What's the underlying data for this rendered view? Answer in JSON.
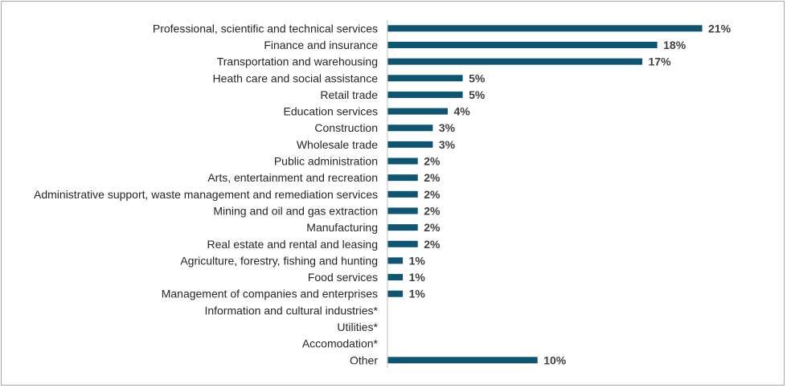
{
  "chart_data": {
    "type": "bar",
    "orientation": "horizontal",
    "title": "",
    "xlabel": "",
    "ylabel": "",
    "xlim": [
      0,
      21
    ],
    "grid": false,
    "legend": "none",
    "bar_color": "#0e5572",
    "categories": [
      "Professional, scientific and technical services",
      "Finance and insurance",
      "Transportation and warehousing",
      "Heath care and social assistance",
      "Retail trade",
      "Education services",
      "Construction",
      "Wholesale trade",
      "Public administration",
      "Arts, entertainment and recreation",
      "Administrative support, waste management and remediation services",
      "Mining and oil and gas extraction",
      "Manufacturing",
      "Real estate and rental and leasing",
      "Agriculture, forestry, fishing and hunting",
      "Food services",
      "Management of companies and enterprises",
      "Information and cultural industries*",
      "Utilities*",
      "Accomodation*",
      "Other"
    ],
    "values": [
      21,
      18,
      17,
      5,
      5,
      4,
      3,
      3,
      2,
      2,
      2,
      2,
      2,
      2,
      1,
      1,
      1,
      null,
      null,
      null,
      10
    ],
    "labels": [
      "21%",
      "18%",
      "17%",
      "5%",
      "5%",
      "4%",
      "3%",
      "3%",
      "2%",
      "2%",
      "2%",
      "2%",
      "2%",
      "2%",
      "1%",
      "1%",
      "1%",
      "",
      "",
      "",
      "10%"
    ]
  }
}
